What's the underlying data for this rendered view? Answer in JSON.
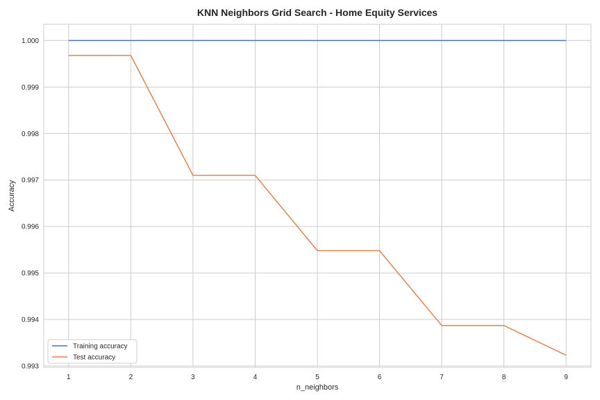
{
  "chart_data": {
    "type": "line",
    "title": "KNN Neighbors Grid Search - Home Equity Services",
    "xlabel": "n_neighbors",
    "ylabel": "Accuracy",
    "x": [
      1,
      2,
      3,
      4,
      5,
      6,
      7,
      8,
      9
    ],
    "x_tick_labels": [
      "1",
      "2",
      "3",
      "4",
      "5",
      "6",
      "7",
      "8",
      "9"
    ],
    "y_tick_values": [
      0.993,
      0.994,
      0.995,
      0.996,
      0.997,
      0.998,
      0.999,
      1.0
    ],
    "y_tick_labels": [
      "0.993",
      "0.994",
      "0.995",
      "0.996",
      "0.997",
      "0.998",
      "0.999",
      "1.000"
    ],
    "xlim": [
      0.6,
      9.4
    ],
    "ylim": [
      0.99297,
      1.00035
    ],
    "grid": true,
    "legend_position": "lower-left",
    "series": [
      {
        "name": "Training accuracy",
        "color": "#4c72b0",
        "values": [
          1.0,
          1.0,
          1.0,
          1.0,
          1.0,
          1.0,
          1.0,
          1.0,
          1.0
        ]
      },
      {
        "name": "Test accuracy",
        "color": "#dd8452",
        "values": [
          0.99968,
          0.99968,
          0.9971,
          0.9971,
          0.99548,
          0.99548,
          0.99387,
          0.99387,
          0.99323
        ]
      }
    ]
  }
}
